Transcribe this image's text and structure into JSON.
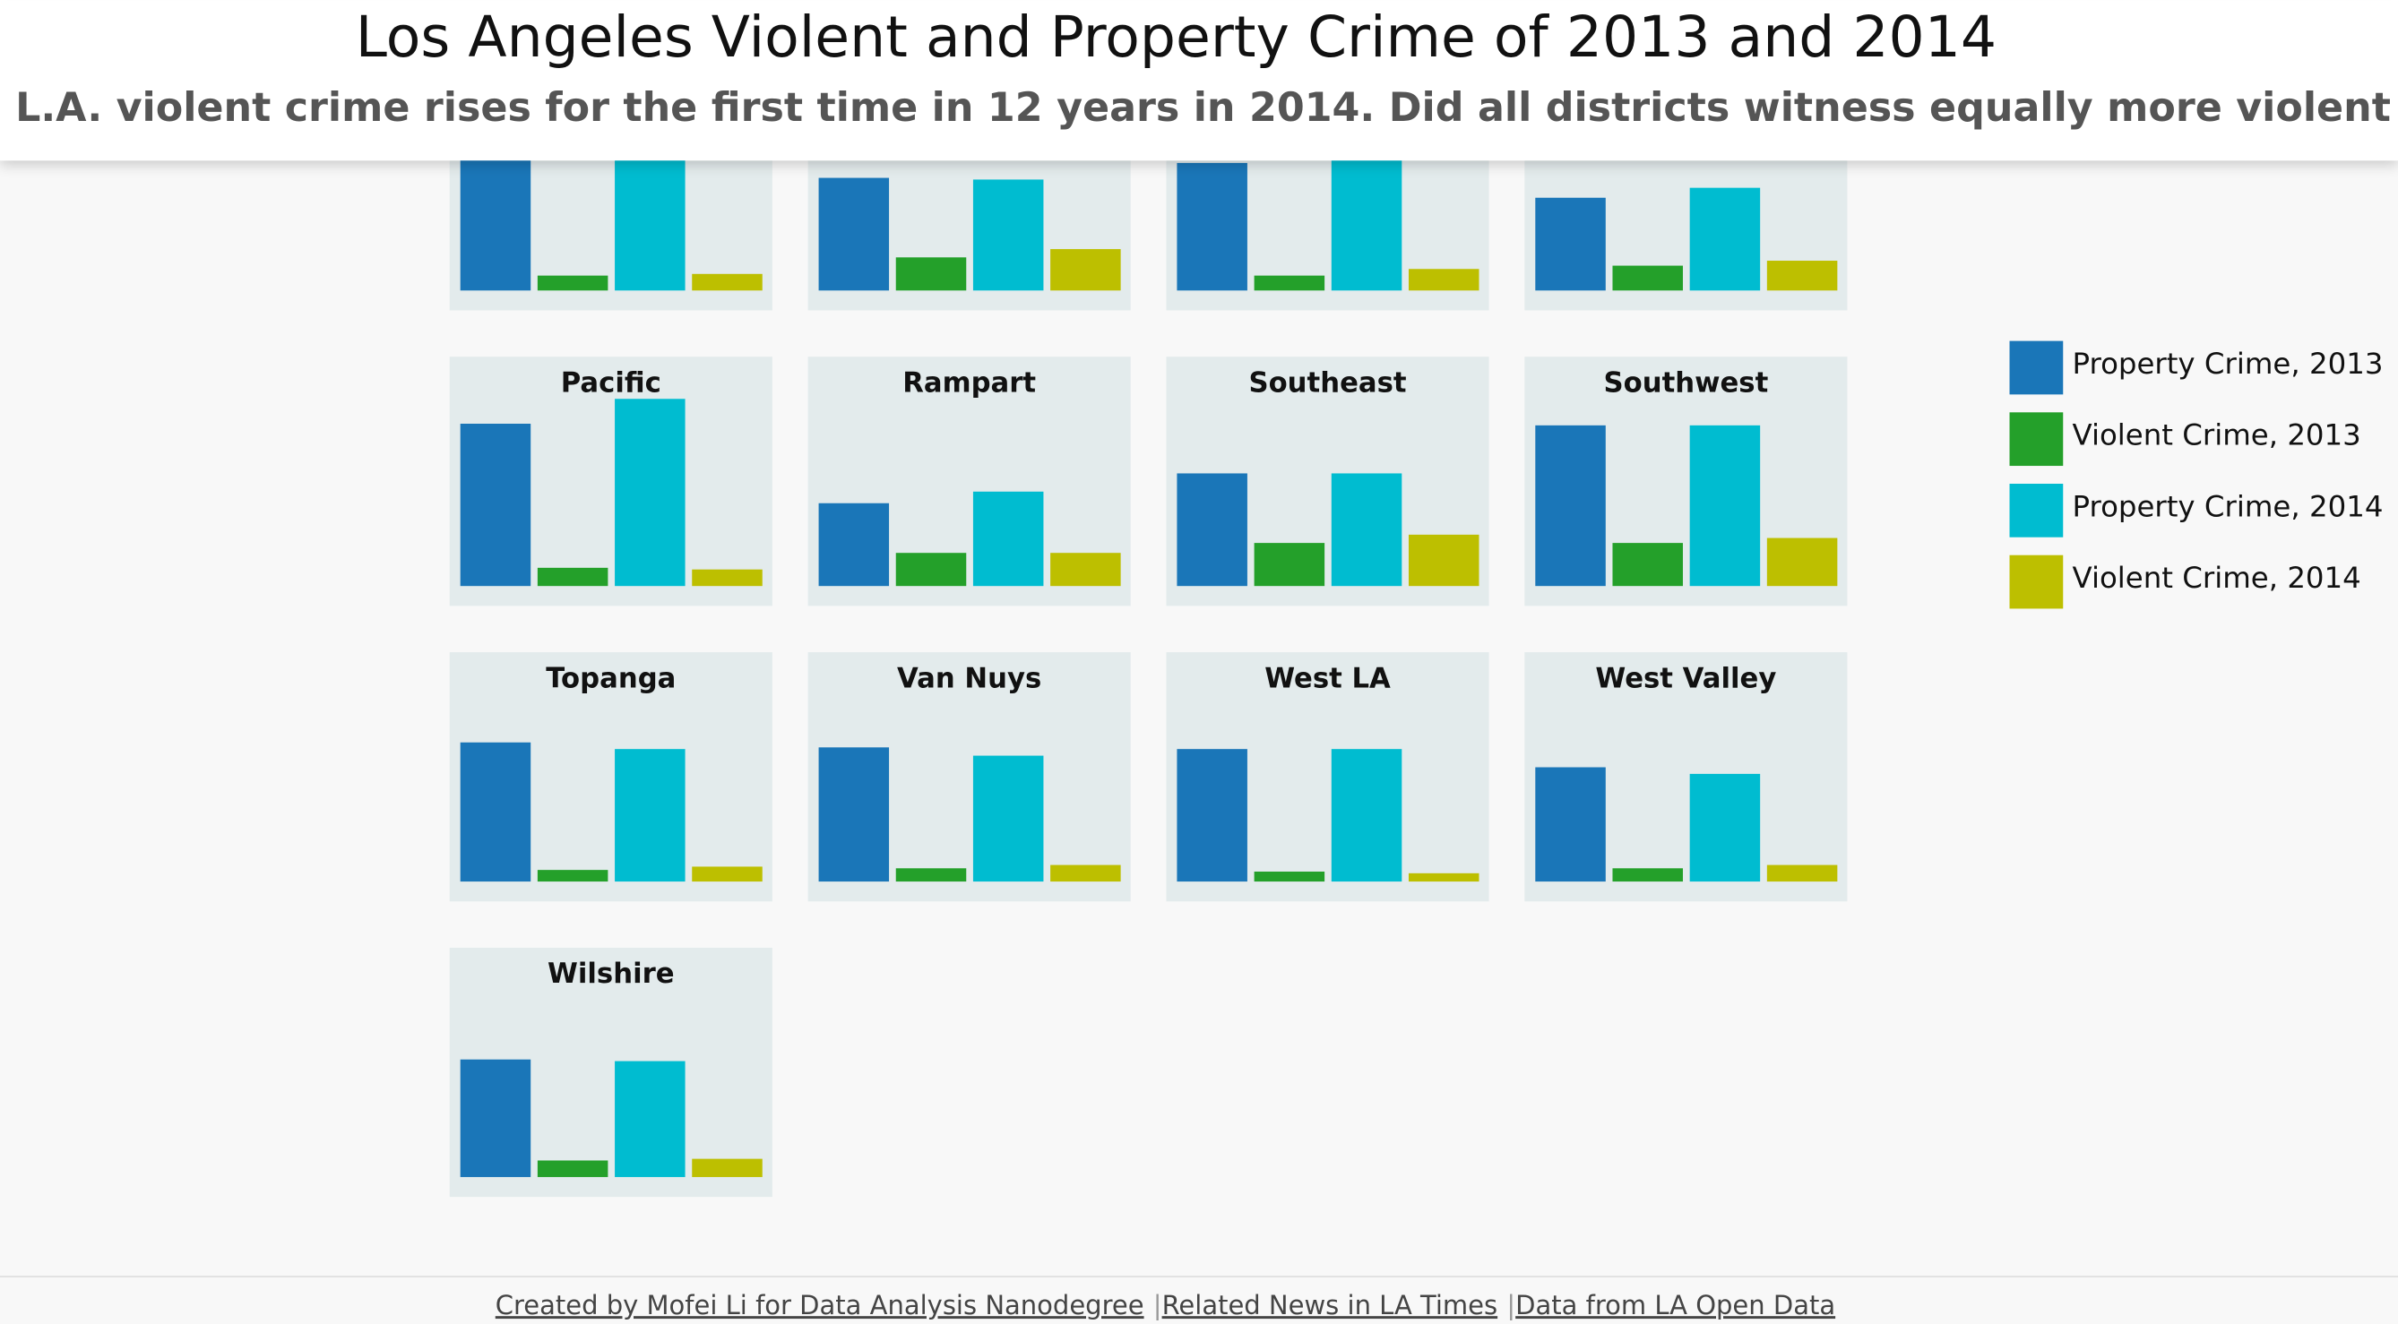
{
  "chart_data": {
    "type": "bar",
    "layout": "small-multiples",
    "title": "Los Angeles Violent and Property Crime of 2013 and 2014",
    "subtitle": "L.A. violent crime rises for the first time in 12 years in 2014. Did all districts witness equally more violent crimes?",
    "categories": [
      null,
      null,
      null,
      null,
      "Pacific",
      "Rampart",
      "Southeast",
      "Southwest",
      "Topanga",
      "Van Nuys",
      "West LA",
      "West Valley",
      "Wilshire"
    ],
    "series": [
      {
        "name": "Property Crime, 2013",
        "color": "#1a76b8",
        "values": [
          100,
          68,
          77,
          56,
          98,
          50,
          68,
          97,
          84,
          81,
          80,
          69,
          71
        ]
      },
      {
        "name": "Violent Crime, 2013",
        "color": "#24a02a",
        "values": [
          9,
          20,
          9,
          15,
          11,
          20,
          26,
          26,
          7,
          8,
          6,
          8,
          10
        ]
      },
      {
        "name": "Property Crime, 2014",
        "color": "#00bcd0",
        "values": [
          100,
          67,
          80,
          62,
          113,
          57,
          68,
          97,
          80,
          76,
          80,
          65,
          70
        ]
      },
      {
        "name": "Violent Crime, 2014",
        "color": "#bdbf00",
        "values": [
          10,
          25,
          13,
          18,
          10,
          20,
          31,
          29,
          9,
          10,
          5,
          10,
          11
        ]
      }
    ],
    "ylim": [
      0,
      120
    ],
    "legend": "right"
  },
  "footer": {
    "links": [
      "Created by Mofei Li for Data Analysis Nanodegree",
      "Related News in LA Times",
      "Data from LA Open Data"
    ],
    "separator": "|"
  }
}
